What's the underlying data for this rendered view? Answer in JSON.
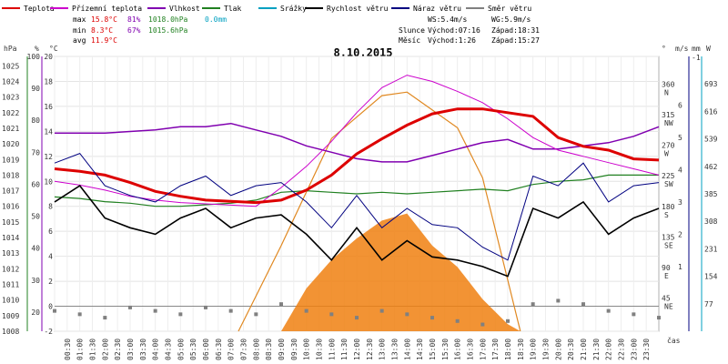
{
  "chart_data": {
    "type": "line",
    "title": "8.10.2015",
    "xlabel": "čas",
    "legend": [
      {
        "name": "Teplota",
        "color": "#dd0000"
      },
      {
        "name": "Přízemní teplota",
        "color": "#cc00cc"
      },
      {
        "name": "Vlhkost",
        "color": "#8000b0"
      },
      {
        "name": "Tlak",
        "color": "#208020"
      },
      {
        "name": "Srážky",
        "color": "#00a0c0"
      },
      {
        "name": "Rychlost větru",
        "color": "#000000"
      },
      {
        "name": "Náraz větru",
        "color": "#000080"
      },
      {
        "name": "Směr větru",
        "color": "#808080"
      }
    ],
    "stats": {
      "max": {
        "label": "max",
        "temp": "15.8°C",
        "hum": "81%",
        "press": "1018.0hPa",
        "rain": "0.0mm"
      },
      "min": {
        "label": "min",
        "temp": "8.3°C",
        "hum": "67%",
        "press": "1015.6hPa"
      },
      "avg": {
        "label": "avg",
        "temp": "11.9°C"
      }
    },
    "wind_info": {
      "ws": "WS:5.4m/s",
      "wg": "WG:5.9m/s"
    },
    "sun": {
      "label": "Slunce",
      "rise": "Východ:07:16",
      "set": "Západ:18:31"
    },
    "moon": {
      "label": "Měsíc",
      "rise": "Východ:1:26",
      "set": "Západ:15:27"
    },
    "axes": {
      "hpa": {
        "unit": "hPa",
        "ticks": [
          "1008",
          "1009",
          "1010",
          "1011",
          "1012",
          "1013",
          "1014",
          "1015",
          "1016",
          "1017",
          "1018",
          "1019",
          "1020",
          "1021",
          "1022",
          "1023",
          "1024",
          "1025"
        ]
      },
      "percent": {
        "unit": "%",
        "ticks": [
          "20",
          "30",
          "40",
          "50",
          "60",
          "70",
          "80",
          "90",
          "100"
        ]
      },
      "celsius": {
        "unit": "°C",
        "ticks": [
          "-2",
          "0",
          "2",
          "4",
          "6",
          "8",
          "10",
          "12",
          "14",
          "16",
          "18",
          "20"
        ]
      },
      "degrees": {
        "unit": "°",
        "ticks": [
          {
            "v": "360",
            "d": "N"
          },
          {
            "v": "315",
            "d": "NW"
          },
          {
            "v": "270",
            "d": "W"
          },
          {
            "v": "225",
            "d": "SW"
          },
          {
            "v": "180",
            "d": "S"
          },
          {
            "v": "135",
            "d": "SE"
          },
          {
            "v": "90",
            "d": "E"
          },
          {
            "v": "45",
            "d": "NE"
          }
        ]
      },
      "ms": {
        "unit": "m/s",
        "ticks": [
          "1",
          "2",
          "3",
          "4",
          "5",
          "6"
        ]
      },
      "mm": {
        "unit": "mm",
        "ticks": [
          "-1"
        ]
      },
      "w": {
        "unit": "W",
        "ticks": [
          "77",
          "154",
          "231",
          "308",
          "385",
          "462",
          "539",
          "616",
          "693"
        ]
      }
    },
    "x_ticks": [
      "00:30",
      "01:00",
      "01:30",
      "02:00",
      "02:30",
      "03:00",
      "03:30",
      "04:00",
      "04:30",
      "05:00",
      "05:30",
      "06:00",
      "06:30",
      "07:00",
      "07:30",
      "08:00",
      "08:30",
      "09:00",
      "09:30",
      "10:00",
      "10:30",
      "11:00",
      "11:30",
      "12:00",
      "12:30",
      "13:00",
      "13:30",
      "14:00",
      "14:30",
      "15:00",
      "15:30",
      "16:00",
      "16:30",
      "17:00",
      "17:30",
      "18:00",
      "18:30",
      "19:00",
      "19:30",
      "20:00",
      "20:30",
      "21:00",
      "21:30",
      "22:00",
      "22:30",
      "23:00",
      "23:30"
    ],
    "series": {
      "temperature_c": [
        [
          0,
          11
        ],
        [
          1,
          10.8
        ],
        [
          2,
          10.5
        ],
        [
          3,
          9.9
        ],
        [
          4,
          9.2
        ],
        [
          5,
          8.8
        ],
        [
          6,
          8.5
        ],
        [
          7,
          8.4
        ],
        [
          8,
          8.3
        ],
        [
          9,
          8.5
        ],
        [
          10,
          9.3
        ],
        [
          11,
          10.5
        ],
        [
          12,
          12.2
        ],
        [
          13,
          13.4
        ],
        [
          14,
          14.5
        ],
        [
          15,
          15.4
        ],
        [
          16,
          15.8
        ],
        [
          17,
          15.8
        ],
        [
          18,
          15.5
        ],
        [
          19,
          15.2
        ],
        [
          20,
          13.5
        ],
        [
          21,
          12.8
        ],
        [
          22,
          12.5
        ],
        [
          23,
          11.8
        ],
        [
          24,
          11.7
        ]
      ],
      "ground_temp_c": [
        [
          0,
          10
        ],
        [
          1,
          9.7
        ],
        [
          2,
          9.3
        ],
        [
          3,
          8.8
        ],
        [
          4,
          8.5
        ],
        [
          5,
          8.3
        ],
        [
          6,
          8.2
        ],
        [
          7,
          8.1
        ],
        [
          8,
          8.0
        ],
        [
          9,
          9.5
        ],
        [
          10,
          11.2
        ],
        [
          11,
          13.2
        ],
        [
          12,
          15.5
        ],
        [
          13,
          17.5
        ],
        [
          14,
          18.5
        ],
        [
          15,
          18.0
        ],
        [
          16,
          17.2
        ],
        [
          17,
          16.3
        ],
        [
          18,
          15.0
        ],
        [
          19,
          13.5
        ],
        [
          20,
          12.5
        ],
        [
          21,
          12.0
        ],
        [
          22,
          11.5
        ],
        [
          23,
          11.0
        ],
        [
          24,
          10.5
        ]
      ],
      "humidity_pct": [
        [
          0,
          76
        ],
        [
          2,
          76
        ],
        [
          4,
          77
        ],
        [
          5,
          78
        ],
        [
          6,
          78
        ],
        [
          7,
          79
        ],
        [
          8,
          77
        ],
        [
          9,
          75
        ],
        [
          10,
          72
        ],
        [
          11,
          70
        ],
        [
          12,
          68
        ],
        [
          13,
          67
        ],
        [
          14,
          67
        ],
        [
          15,
          69
        ],
        [
          16,
          71
        ],
        [
          17,
          73
        ],
        [
          18,
          74
        ],
        [
          19,
          71
        ],
        [
          20,
          71
        ],
        [
          21,
          72
        ],
        [
          22,
          73
        ],
        [
          23,
          75
        ],
        [
          24,
          78
        ]
      ],
      "pressure_hpa": [
        [
          0,
          1016.6
        ],
        [
          1,
          1016.5
        ],
        [
          2,
          1016.3
        ],
        [
          3,
          1016.2
        ],
        [
          4,
          1016.0
        ],
        [
          5,
          1016.0
        ],
        [
          6,
          1016.1
        ],
        [
          7,
          1016.2
        ],
        [
          8,
          1016.4
        ],
        [
          9,
          1016.9
        ],
        [
          10,
          1017.0
        ],
        [
          11,
          1016.9
        ],
        [
          12,
          1016.8
        ],
        [
          13,
          1016.9
        ],
        [
          14,
          1016.8
        ],
        [
          15,
          1016.9
        ],
        [
          16,
          1017.0
        ],
        [
          17,
          1017.1
        ],
        [
          18,
          1017.0
        ],
        [
          19,
          1017.4
        ],
        [
          20,
          1017.6
        ],
        [
          21,
          1017.7
        ],
        [
          22,
          1018.0
        ],
        [
          23,
          1018.0
        ],
        [
          24,
          1018.0
        ]
      ],
      "wind_speed_ms": [
        [
          0,
          3.0
        ],
        [
          1,
          3.5
        ],
        [
          2,
          2.5
        ],
        [
          3,
          2.2
        ],
        [
          4,
          2.0
        ],
        [
          5,
          2.5
        ],
        [
          6,
          2.8
        ],
        [
          7,
          2.2
        ],
        [
          8,
          2.5
        ],
        [
          9,
          2.6
        ],
        [
          10,
          2.0
        ],
        [
          11,
          1.2
        ],
        [
          12,
          2.2
        ],
        [
          13,
          1.2
        ],
        [
          14,
          1.8
        ],
        [
          15,
          1.3
        ],
        [
          16,
          1.2
        ],
        [
          17,
          1.0
        ],
        [
          18,
          0.7
        ],
        [
          19,
          2.8
        ],
        [
          20,
          2.5
        ],
        [
          21,
          3.0
        ],
        [
          22,
          2.0
        ],
        [
          23,
          2.5
        ],
        [
          24,
          2.8
        ]
      ],
      "wind_gust_ms": [
        [
          0,
          4.2
        ],
        [
          1,
          4.5
        ],
        [
          2,
          3.5
        ],
        [
          3,
          3.2
        ],
        [
          4,
          3.0
        ],
        [
          5,
          3.5
        ],
        [
          6,
          3.8
        ],
        [
          7,
          3.2
        ],
        [
          8,
          3.5
        ],
        [
          9,
          3.6
        ],
        [
          10,
          3.0
        ],
        [
          11,
          2.2
        ],
        [
          12,
          3.2
        ],
        [
          13,
          2.2
        ],
        [
          14,
          2.8
        ],
        [
          15,
          2.3
        ],
        [
          16,
          2.2
        ],
        [
          17,
          1.6
        ],
        [
          18,
          1.2
        ],
        [
          19,
          3.8
        ],
        [
          20,
          3.5
        ],
        [
          21,
          4.2
        ],
        [
          22,
          3.0
        ],
        [
          23,
          3.5
        ],
        [
          24,
          3.6
        ]
      ],
      "wind_dir_deg": [
        [
          0,
          30
        ],
        [
          1,
          25
        ],
        [
          2,
          20
        ],
        [
          3,
          35
        ],
        [
          4,
          30
        ],
        [
          5,
          25
        ],
        [
          6,
          35
        ],
        [
          7,
          30
        ],
        [
          8,
          25
        ],
        [
          9,
          40
        ],
        [
          10,
          30
        ],
        [
          11,
          25
        ],
        [
          12,
          20
        ],
        [
          13,
          30
        ],
        [
          14,
          25
        ],
        [
          15,
          20
        ],
        [
          16,
          15
        ],
        [
          17,
          10
        ],
        [
          18,
          15
        ],
        [
          19,
          40
        ],
        [
          20,
          45
        ],
        [
          21,
          40
        ],
        [
          22,
          30
        ],
        [
          23,
          25
        ],
        [
          24,
          20
        ]
      ],
      "solar_w": [
        [
          9,
          0
        ],
        [
          10,
          120
        ],
        [
          11,
          200
        ],
        [
          12,
          260
        ],
        [
          13,
          310
        ],
        [
          14,
          330
        ],
        [
          15,
          240
        ],
        [
          16,
          180
        ],
        [
          17,
          90
        ],
        [
          18,
          20
        ],
        [
          18.5,
          0
        ]
      ],
      "solar_theoretical_w": [
        [
          7.3,
          0
        ],
        [
          9,
          240
        ],
        [
          11,
          540
        ],
        [
          13,
          660
        ],
        [
          14,
          670
        ],
        [
          16,
          570
        ],
        [
          17,
          430
        ],
        [
          18.5,
          0
        ]
      ]
    }
  }
}
